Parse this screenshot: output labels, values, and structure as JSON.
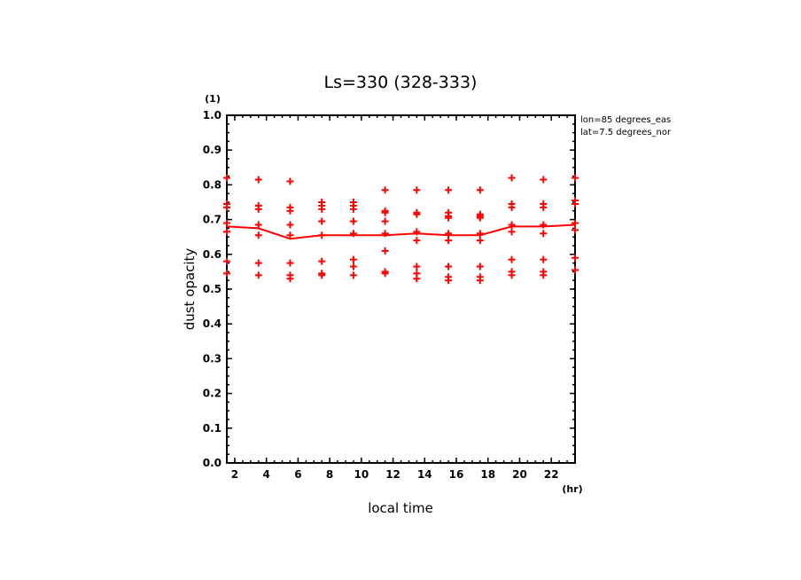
{
  "chart_data": {
    "type": "scatter",
    "title": "Ls=330 (328-333)",
    "xlabel": "local time",
    "ylabel": "dust opacity",
    "x_unit": "(hr)",
    "y_unit": "(1)",
    "annotations": [
      "lon=85 degrees_eas",
      "lat=7.5 degrees_nor"
    ],
    "xlim": [
      1.5,
      23.5
    ],
    "ylim": [
      0.0,
      1.0
    ],
    "x_ticks": [
      2,
      4,
      6,
      8,
      10,
      12,
      14,
      16,
      18,
      20,
      22
    ],
    "y_ticks": [
      "0.0",
      "0.1",
      "0.2",
      "0.3",
      "0.4",
      "0.5",
      "0.6",
      "0.7",
      "0.8",
      "0.9",
      "1.0"
    ],
    "grid": false,
    "color": "#ff0000",
    "series": [
      {
        "kind": "line",
        "x": [
          1.5,
          3.5,
          5.5,
          7.5,
          9.5,
          11.5,
          13.5,
          15.5,
          17.5,
          19.5,
          21.5,
          23.5
        ],
        "y": [
          0.68,
          0.675,
          0.645,
          0.655,
          0.655,
          0.655,
          0.66,
          0.655,
          0.655,
          0.68,
          0.68,
          0.685
        ]
      },
      {
        "kind": "markers",
        "marker": "plus",
        "points": [
          [
            1.5,
            0.82
          ],
          [
            1.5,
            0.745
          ],
          [
            1.5,
            0.735
          ],
          [
            1.5,
            0.69
          ],
          [
            1.5,
            0.665
          ],
          [
            1.5,
            0.58
          ],
          [
            1.5,
            0.545
          ],
          [
            3.5,
            0.815
          ],
          [
            3.5,
            0.74
          ],
          [
            3.5,
            0.73
          ],
          [
            3.5,
            0.685
          ],
          [
            3.5,
            0.655
          ],
          [
            3.5,
            0.575
          ],
          [
            3.5,
            0.54
          ],
          [
            5.5,
            0.81
          ],
          [
            5.5,
            0.735
          ],
          [
            5.5,
            0.725
          ],
          [
            5.5,
            0.685
          ],
          [
            5.5,
            0.655
          ],
          [
            5.5,
            0.575
          ],
          [
            5.5,
            0.54
          ],
          [
            5.5,
            0.53
          ],
          [
            7.5,
            0.75
          ],
          [
            7.5,
            0.74
          ],
          [
            7.5,
            0.73
          ],
          [
            7.5,
            0.695
          ],
          [
            7.5,
            0.655
          ],
          [
            7.5,
            0.58
          ],
          [
            7.5,
            0.545
          ],
          [
            7.5,
            0.54
          ],
          [
            9.5,
            0.75
          ],
          [
            9.5,
            0.74
          ],
          [
            9.5,
            0.73
          ],
          [
            9.5,
            0.695
          ],
          [
            9.5,
            0.66
          ],
          [
            9.5,
            0.585
          ],
          [
            9.5,
            0.565
          ],
          [
            9.5,
            0.54
          ],
          [
            11.5,
            0.785
          ],
          [
            11.5,
            0.725
          ],
          [
            11.5,
            0.72
          ],
          [
            11.5,
            0.695
          ],
          [
            11.5,
            0.66
          ],
          [
            11.5,
            0.61
          ],
          [
            11.5,
            0.55
          ],
          [
            11.5,
            0.545
          ],
          [
            13.5,
            0.785
          ],
          [
            13.5,
            0.72
          ],
          [
            13.5,
            0.715
          ],
          [
            13.5,
            0.665
          ],
          [
            13.5,
            0.64
          ],
          [
            13.5,
            0.565
          ],
          [
            13.5,
            0.545
          ],
          [
            13.5,
            0.53
          ],
          [
            15.5,
            0.785
          ],
          [
            15.5,
            0.72
          ],
          [
            15.5,
            0.71
          ],
          [
            15.5,
            0.705
          ],
          [
            15.5,
            0.66
          ],
          [
            15.5,
            0.64
          ],
          [
            15.5,
            0.565
          ],
          [
            15.5,
            0.535
          ],
          [
            15.5,
            0.525
          ],
          [
            17.5,
            0.785
          ],
          [
            17.5,
            0.715
          ],
          [
            17.5,
            0.71
          ],
          [
            17.5,
            0.705
          ],
          [
            17.5,
            0.66
          ],
          [
            17.5,
            0.64
          ],
          [
            17.5,
            0.565
          ],
          [
            17.5,
            0.535
          ],
          [
            17.5,
            0.525
          ],
          [
            19.5,
            0.82
          ],
          [
            19.5,
            0.745
          ],
          [
            19.5,
            0.735
          ],
          [
            19.5,
            0.685
          ],
          [
            19.5,
            0.665
          ],
          [
            19.5,
            0.585
          ],
          [
            19.5,
            0.55
          ],
          [
            19.5,
            0.54
          ],
          [
            21.5,
            0.815
          ],
          [
            21.5,
            0.745
          ],
          [
            21.5,
            0.735
          ],
          [
            21.5,
            0.685
          ],
          [
            21.5,
            0.66
          ],
          [
            21.5,
            0.585
          ],
          [
            21.5,
            0.55
          ],
          [
            21.5,
            0.54
          ],
          [
            23.5,
            0.82
          ],
          [
            23.5,
            0.755
          ],
          [
            23.5,
            0.745
          ],
          [
            23.5,
            0.69
          ],
          [
            23.5,
            0.67
          ],
          [
            23.5,
            0.59
          ],
          [
            23.5,
            0.555
          ]
        ]
      }
    ]
  }
}
